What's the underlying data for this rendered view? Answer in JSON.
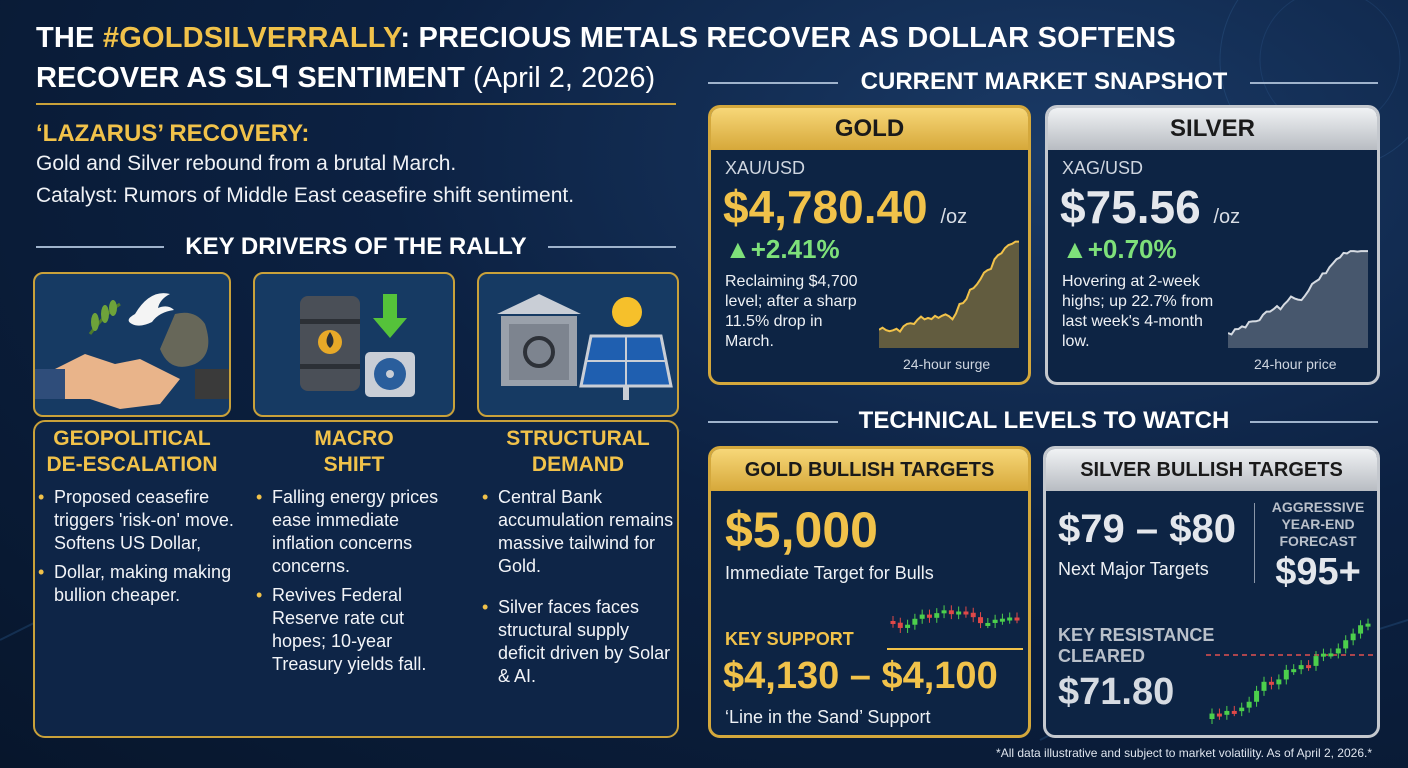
{
  "header": {
    "title_pre": "THE ",
    "title_hashtag": "#GOLDSILVERRALLY",
    "title_post": ": PRECIOUS METALS RECOVER AS DOLLAR SOFTENS",
    "title_line2": "RECOVER AS SLꟼ SENTIMENT",
    "date": "(April 2, 2026)"
  },
  "intro": {
    "heading": "‘LAZARUS’ RECOVERY:",
    "line1": "Gold and Silver rebound from a brutal March.",
    "line2": "Catalyst: Rumors of Middle East ceasefire shift sentiment."
  },
  "drivers": {
    "heading": "KEY DRIVERS OF THE RALLY",
    "items": [
      {
        "title1": "GEOPOLITICAL",
        "title2": "DE-ESCALATION",
        "bullets": [
          "Proposed ceasefire triggers 'risk-on' move. Softens US Dollar,",
          "Dollar, making making bullion cheaper."
        ]
      },
      {
        "title1": "MACRO",
        "title2": "SHIFT",
        "bullets": [
          "Falling energy prices ease immediate inflation concerns concerns.",
          "Revives Federal Reserve rate cut hopes; 10-year Treasury yields fall."
        ]
      },
      {
        "title1": "STRUCTURAL",
        "title2": "DEMAND",
        "bullets": [
          "Central Bank accumulation remains massive tailwind for Gold.",
          "Silver faces faces structural supply deficit driven by Solar & AI."
        ]
      }
    ]
  },
  "snapshot": {
    "heading": "CURRENT MARKET SNAPSHOT",
    "gold": {
      "name": "GOLD",
      "pair": "XAU/USD",
      "price": "$4,780.40",
      "unit": "/oz",
      "change": "+2.41%",
      "note": "Reclaiming $4,700 level; after a sharp 11.5% drop in March.",
      "chart_caption": "24-hour surge"
    },
    "silver": {
      "name": "SILVER",
      "pair": "XAG/USD",
      "price": "$75.56",
      "unit": "/oz",
      "change": "+0.70%",
      "note": "Hovering at 2-week highs; up 22.7% from last week's 4-month low.",
      "chart_caption": "24-hour price"
    }
  },
  "technical": {
    "heading": "TECHNICAL LEVELS TO WATCH",
    "gold": {
      "title": "GOLD BULLISH TARGETS",
      "target": "$5,000",
      "target_label": "Immediate Target for Bulls",
      "support_label": "KEY SUPPORT",
      "support": "$4,130 – $4,100",
      "support_note": "‘Line in the Sand’ Support"
    },
    "silver": {
      "title": "SILVER BULLISH TARGETS",
      "target": "$79 – $80",
      "target_label": "Next Major Targets",
      "forecast_l1": "AGGRESSIVE",
      "forecast_l2": "YEAR-END",
      "forecast_l3": "FORECAST",
      "forecast": "$95+",
      "resist_l1": "KEY RESISTANCE",
      "resist_l2": "CLEARED",
      "resistance": "$71.80"
    }
  },
  "footnote": "*All data illustrative and subject to market volatility. As of April 2, 2026.*",
  "colors": {
    "gold": "#f1c24a",
    "green": "#7ee07a",
    "navy": "#0c2142"
  }
}
